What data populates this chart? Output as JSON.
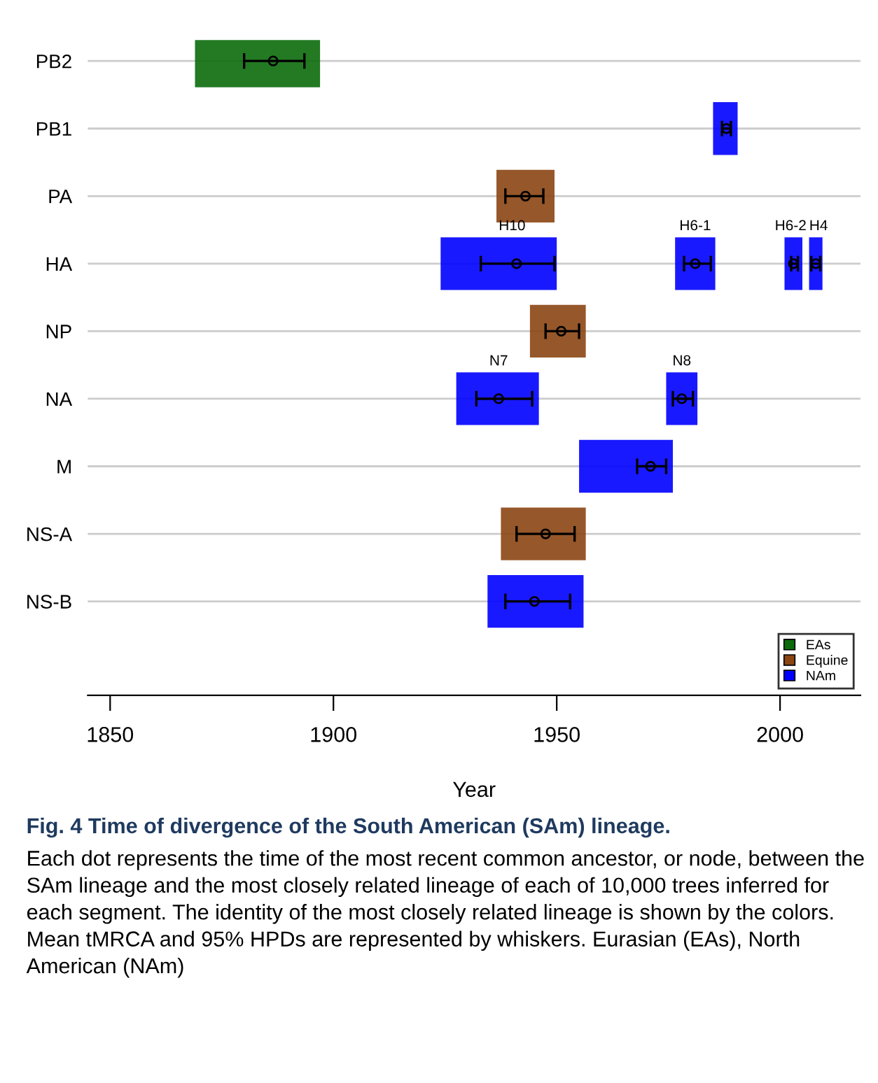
{
  "chart_data": {
    "type": "bar",
    "orientation": "horizontal",
    "xlabel": "Year",
    "categories": [
      "PB2",
      "PB1",
      "PA",
      "HA",
      "NP",
      "NA",
      "M",
      "NS-A",
      "NS-B"
    ],
    "xlim": [
      1845,
      2018
    ],
    "xticks": [
      1850,
      1900,
      1950,
      2000
    ],
    "grid": "y",
    "legend": "bottom right",
    "series": [
      {
        "name": "EAs",
        "color": "#0b6b0b",
        "values": [
          28,
          null,
          null,
          null,
          null,
          null,
          null,
          null,
          null
        ],
        "base": [
          1869,
          null,
          null,
          null,
          null,
          null,
          null,
          null,
          null
        ]
      },
      {
        "name": "Equine",
        "color": "#8b4513",
        "values": [
          null,
          null,
          13,
          null,
          12.5,
          null,
          null,
          19,
          null
        ],
        "base": [
          null,
          null,
          1936.5,
          null,
          1944,
          null,
          null,
          1937.5,
          null
        ]
      },
      {
        "name": "NAm",
        "color": "#0000ff",
        "values": [
          null,
          5.5,
          null,
          26,
          null,
          18.5,
          21,
          null,
          21.5
        ],
        "base": [
          null,
          1985,
          null,
          1924,
          null,
          1927.5,
          1955,
          null,
          1934.5
        ]
      },
      {
        "color": "#0000ff",
        "values": [
          null,
          null,
          null,
          9,
          null,
          7,
          null,
          null,
          null
        ],
        "base": [
          null,
          null,
          null,
          1976.5,
          null,
          1974.5,
          null,
          null,
          null
        ]
      },
      {
        "color": "#0000ff",
        "values": [
          null,
          null,
          null,
          4,
          null,
          null,
          null,
          null,
          null
        ],
        "base": [
          null,
          null,
          null,
          2001,
          null,
          null,
          null,
          null,
          null
        ]
      },
      {
        "color": "#0000ff",
        "values": [
          null,
          null,
          null,
          3,
          null,
          null,
          null,
          null,
          null
        ],
        "base": [
          null,
          null,
          null,
          2006.5,
          null,
          null,
          null,
          null,
          null
        ]
      },
      {
        "type": "scatter",
        "color": "#000000",
        "marker": "circle",
        "values": [
          1886.5,
          1988,
          1943,
          1941,
          1951,
          1937,
          1971,
          1947.5,
          1945
        ],
        "errors": [
          [
            1880,
            1893.5
          ],
          [
            1987,
            1989
          ],
          [
            1938.5,
            1947
          ],
          [
            1933,
            1949.5
          ],
          [
            1947.5,
            1955
          ],
          [
            1932,
            1944.5
          ],
          [
            1968,
            1974.5
          ],
          [
            1941,
            1954
          ],
          [
            1938.5,
            1953
          ]
        ]
      },
      {
        "type": "scatter",
        "color": "#000000",
        "marker": "circle",
        "values": [
          null,
          null,
          null,
          1981,
          null,
          1978,
          null,
          null,
          null
        ],
        "errors": [
          null,
          null,
          null,
          [
            1978.5,
            1984.5
          ],
          null,
          [
            1976,
            1980.5
          ],
          null,
          null,
          null
        ]
      },
      {
        "type": "scatter",
        "color": "#000000",
        "marker": "circle",
        "values": [
          null,
          null,
          null,
          2003,
          null,
          null,
          null,
          null,
          null
        ],
        "errors": [
          null,
          null,
          null,
          [
            2002.5,
            2004
          ],
          null,
          null,
          null,
          null,
          null
        ]
      },
      {
        "type": "scatter",
        "color": "#000000",
        "marker": "circle",
        "values": [
          null,
          null,
          null,
          2008,
          null,
          null,
          null,
          null,
          null
        ],
        "errors": [
          null,
          null,
          null,
          [
            2007,
            2009
          ],
          null,
          null,
          null,
          null,
          null
        ]
      }
    ],
    "annotations": [
      {
        "text": "H10",
        "x": 1940,
        "y": "HA"
      },
      {
        "text": "H6-1",
        "x": 1981,
        "y": "HA"
      },
      {
        "text": "H6-2",
        "x": 2003,
        "y": "HA"
      },
      {
        "text": "H4",
        "x": 2008,
        "y": "HA"
      },
      {
        "text": "N7",
        "x": 1937,
        "y": "NA"
      },
      {
        "text": "N8",
        "x": 1978,
        "y": "NA"
      },
      "Fig. 4 Time of divergence of the South American (SAm) lineage.",
      "Each dot represents the time of the most recent common ancestor, or node, between the SAm lineage and the most closely related lineage of each of 10,000 trees inferred for each segment. The identity of the most closely related lineage is shown by the colors. Mean tMRCA and 95% HPDs are represented by whiskers. Eurasian (EAs), North American (NAm)"
    ]
  }
}
